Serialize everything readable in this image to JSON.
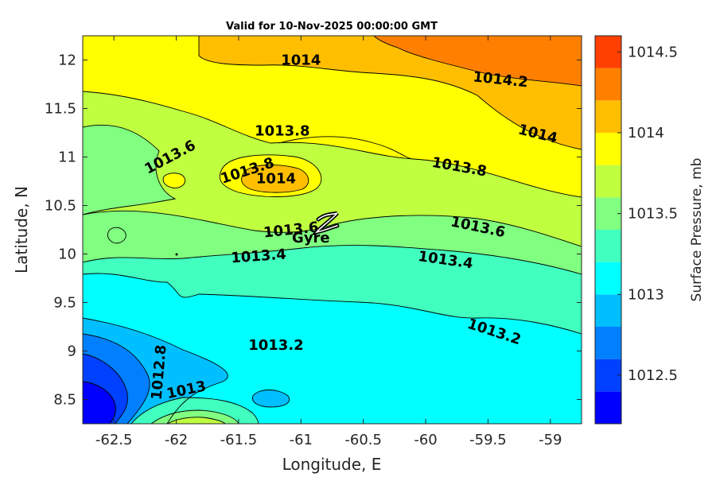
{
  "chart_data": {
    "type": "contourf",
    "title": "Valid for 10-Nov-2025 00:00:00 GMT",
    "xlabel": "Longitude, E",
    "ylabel": "Latitude, N",
    "xlim": [
      -62.75,
      -58.75
    ],
    "ylim": [
      8.25,
      12.25
    ],
    "xticks": [
      "-62.5",
      "-62",
      "-61.5",
      "-61",
      "-60.5",
      "-60",
      "-59.5",
      "-59"
    ],
    "yticks": [
      "8.5",
      "9",
      "9.5",
      "10",
      "10.5",
      "11",
      "11.5",
      "12"
    ],
    "xtick_values": [
      -62.5,
      -62,
      -61.5,
      -61,
      -60.5,
      -60,
      -59.5,
      -59
    ],
    "ytick_values": [
      8.5,
      9,
      9.5,
      10,
      10.5,
      11,
      11.5,
      12
    ],
    "colorbar": {
      "label": "Surface Pressure, mb",
      "range": [
        1012.2,
        1014.6
      ],
      "ticks": [
        "1012.5",
        "1013",
        "1013.5",
        "1014",
        "1014.5"
      ],
      "tick_values": [
        1012.5,
        1013,
        1013.5,
        1014,
        1014.5
      ],
      "levels": [
        1012.2,
        1012.4,
        1012.6,
        1012.8,
        1013.0,
        1013.2,
        1013.4,
        1013.6,
        1013.8,
        1014.0,
        1014.2,
        1014.4,
        1014.6
      ],
      "colors": [
        "#0000ff",
        "#0040ff",
        "#0080ff",
        "#00bfff",
        "#00ffff",
        "#40ffbf",
        "#80ff80",
        "#bfff40",
        "#ffff00",
        "#ffbf00",
        "#ff8000",
        "#ff4000",
        "#ff0000"
      ]
    },
    "contour_labels": [
      {
        "text": "1014",
        "lon": -61.0,
        "lat": 12.0
      },
      {
        "text": "1014.2",
        "lon": -59.4,
        "lat": 11.8
      },
      {
        "text": "1014",
        "lon": -59.1,
        "lat": 11.24
      },
      {
        "text": "1013.8",
        "lon": -61.15,
        "lat": 11.27
      },
      {
        "text": "1013.8",
        "lon": -59.73,
        "lat": 10.9
      },
      {
        "text": "1013.6",
        "lon": -62.05,
        "lat": 11.0
      },
      {
        "text": "1013.8",
        "lon": -61.43,
        "lat": 10.86
      },
      {
        "text": "1014",
        "lon": -61.2,
        "lat": 10.78
      },
      {
        "text": "1013.6",
        "lon": -61.08,
        "lat": 10.25
      },
      {
        "text": "1013.6",
        "lon": -59.58,
        "lat": 10.28
      },
      {
        "text": "1013.4",
        "lon": -61.34,
        "lat": 9.98
      },
      {
        "text": "1013.4",
        "lon": -59.84,
        "lat": 9.94
      },
      {
        "text": "1013.2",
        "lon": -61.2,
        "lat": 9.06
      },
      {
        "text": "1013.2",
        "lon": -59.45,
        "lat": 9.2
      },
      {
        "text": "1012.8",
        "lon": -62.14,
        "lat": 8.78
      },
      {
        "text": "1013",
        "lon": -61.92,
        "lat": 8.6
      }
    ],
    "annotations": [
      {
        "text": "Gyre",
        "lon": -60.92,
        "lat": 10.12
      }
    ],
    "grid": false
  }
}
